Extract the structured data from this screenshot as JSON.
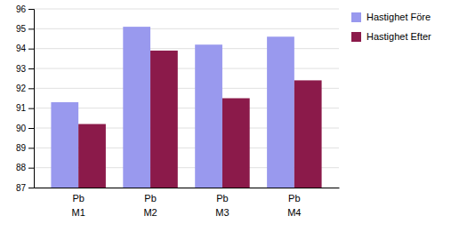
{
  "chart_data": {
    "type": "bar",
    "categories": [
      "M1",
      "M2",
      "M3",
      "M4"
    ],
    "series": [
      {
        "name": "Hastighet Före",
        "color": "#9999ee",
        "values": [
          91.3,
          95.1,
          94.2,
          94.6
        ]
      },
      {
        "name": "Hastighet Efter",
        "color": "#8b1a4a",
        "values": [
          90.2,
          93.9,
          91.5,
          92.4
        ]
      }
    ],
    "annotations": [
      {
        "text": "Pb",
        "x": "M1"
      },
      {
        "text": "Pb",
        "x": "M2"
      },
      {
        "text": "Pb",
        "x": "M3"
      },
      {
        "text": "Pb",
        "x": "M4"
      }
    ],
    "ylim": [
      87,
      96
    ],
    "yticks": [
      87,
      88,
      89,
      90,
      91,
      92,
      93,
      94,
      95,
      96
    ],
    "grid": true,
    "legend": "right"
  }
}
